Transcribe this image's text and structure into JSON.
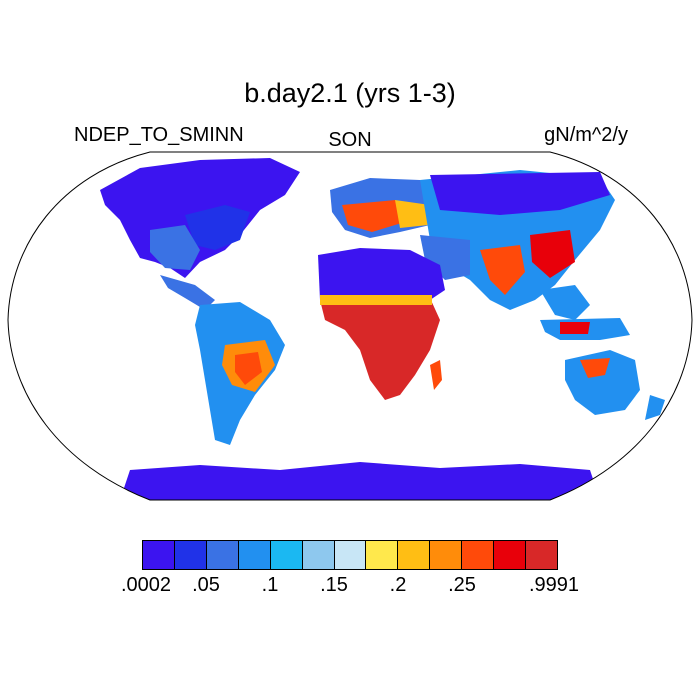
{
  "title": "b.day2.1 (yrs 1-3)",
  "variable": "NDEP_TO_SMINN",
  "season": "SON",
  "units": "gN/m^2/y",
  "colorbar": {
    "colors": [
      "#3c14f0",
      "#2032e8",
      "#3a72e4",
      "#2290f0",
      "#1bb8f2",
      "#8ec8ee",
      "#c8e6f6",
      "#ffe84c",
      "#ffbe14",
      "#ff8c0a",
      "#ff4a0a",
      "#e8000a",
      "#d82828"
    ],
    "labels": [
      ".0002",
      ".05",
      ".1",
      ".15",
      ".2",
      ".25",
      ".9991"
    ]
  }
}
